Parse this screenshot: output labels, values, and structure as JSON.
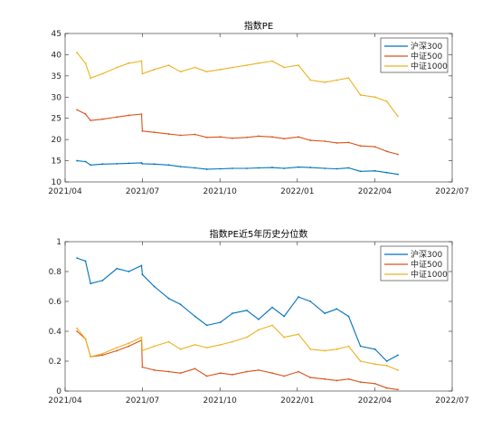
{
  "chart_data": [
    {
      "type": "line",
      "title": "指数PE",
      "xlabel": "",
      "ylabel": "",
      "x_ticks": [
        "2021/04",
        "2021/07",
        "2021/10",
        "2022/01",
        "2022/04",
        "2022/07"
      ],
      "y_ticks": [
        "10",
        "15",
        "20",
        "25",
        "30",
        "35",
        "40",
        "45"
      ],
      "xlim": [
        "2021-04-01",
        "2022-07-01"
      ],
      "ylim": [
        10,
        45
      ],
      "legend_position": "top-right",
      "grid": false,
      "x": [
        "2021-04-15",
        "2021-04-25",
        "2021-05-01",
        "2021-05-15",
        "2021-06-01",
        "2021-06-15",
        "2021-06-30",
        "2021-07-01",
        "2021-07-15",
        "2021-08-01",
        "2021-08-15",
        "2021-09-01",
        "2021-09-15",
        "2021-10-01",
        "2021-10-15",
        "2021-11-01",
        "2021-11-15",
        "2021-12-01",
        "2021-12-15",
        "2022-01-01",
        "2022-01-15",
        "2022-02-01",
        "2022-02-15",
        "2022-03-01",
        "2022-03-15",
        "2022-04-01",
        "2022-04-15",
        "2022-04-28"
      ],
      "series": [
        {
          "name": "沪深300",
          "color": "#0072BD",
          "values": [
            15.0,
            14.8,
            14.0,
            14.2,
            14.3,
            14.4,
            14.5,
            14.3,
            14.2,
            14.0,
            13.6,
            13.3,
            13.0,
            13.1,
            13.2,
            13.2,
            13.3,
            13.4,
            13.2,
            13.5,
            13.4,
            13.2,
            13.1,
            13.3,
            12.5,
            12.6,
            12.2,
            11.8
          ]
        },
        {
          "name": "中证500",
          "color": "#D95319",
          "values": [
            27.0,
            26.0,
            24.5,
            24.8,
            25.3,
            25.7,
            26.0,
            22.0,
            21.7,
            21.3,
            21.0,
            21.2,
            20.5,
            20.6,
            20.3,
            20.5,
            20.8,
            20.6,
            20.2,
            20.6,
            19.8,
            19.6,
            19.2,
            19.3,
            18.5,
            18.3,
            17.2,
            16.5
          ]
        },
        {
          "name": "中证1000",
          "color": "#EDB120",
          "values": [
            40.5,
            38.0,
            34.5,
            35.5,
            37.0,
            38.0,
            38.5,
            35.5,
            36.5,
            37.5,
            36.0,
            37.0,
            36.0,
            36.5,
            37.0,
            37.5,
            38.0,
            38.5,
            37.0,
            37.5,
            34.0,
            33.5,
            34.0,
            34.5,
            30.5,
            30.0,
            29.0,
            25.5
          ]
        }
      ]
    },
    {
      "type": "line",
      "title": "指数PE近5年历史分位数",
      "xlabel": "",
      "ylabel": "",
      "x_ticks": [
        "2021/04",
        "2021/07",
        "2021/10",
        "2022/01",
        "2022/04",
        "2022/07"
      ],
      "y_ticks": [
        "0",
        "0.2",
        "0.4",
        "0.6",
        "0.8",
        "1"
      ],
      "xlim": [
        "2021-04-01",
        "2022-07-01"
      ],
      "ylim": [
        0,
        1
      ],
      "legend_position": "top-right",
      "grid": false,
      "x": [
        "2021-04-15",
        "2021-04-25",
        "2021-05-01",
        "2021-05-15",
        "2021-06-01",
        "2021-06-15",
        "2021-06-30",
        "2021-07-01",
        "2021-07-15",
        "2021-08-01",
        "2021-08-15",
        "2021-09-01",
        "2021-09-15",
        "2021-10-01",
        "2021-10-15",
        "2021-11-01",
        "2021-11-15",
        "2021-12-01",
        "2021-12-15",
        "2022-01-01",
        "2022-01-15",
        "2022-02-01",
        "2022-02-15",
        "2022-03-01",
        "2022-03-15",
        "2022-04-01",
        "2022-04-15",
        "2022-04-28"
      ],
      "series": [
        {
          "name": "沪深300",
          "color": "#0072BD",
          "values": [
            0.89,
            0.87,
            0.72,
            0.74,
            0.82,
            0.8,
            0.84,
            0.78,
            0.7,
            0.62,
            0.58,
            0.5,
            0.44,
            0.46,
            0.52,
            0.54,
            0.48,
            0.56,
            0.5,
            0.63,
            0.6,
            0.52,
            0.55,
            0.5,
            0.3,
            0.28,
            0.2,
            0.24
          ]
        },
        {
          "name": "中证500",
          "color": "#D95319",
          "values": [
            0.4,
            0.35,
            0.23,
            0.24,
            0.27,
            0.3,
            0.34,
            0.16,
            0.14,
            0.13,
            0.12,
            0.15,
            0.1,
            0.12,
            0.11,
            0.13,
            0.14,
            0.12,
            0.1,
            0.13,
            0.09,
            0.08,
            0.07,
            0.08,
            0.06,
            0.05,
            0.02,
            0.01
          ]
        },
        {
          "name": "中证1000",
          "color": "#EDB120",
          "values": [
            0.42,
            0.35,
            0.23,
            0.25,
            0.29,
            0.32,
            0.36,
            0.27,
            0.3,
            0.33,
            0.28,
            0.31,
            0.29,
            0.31,
            0.33,
            0.36,
            0.41,
            0.44,
            0.36,
            0.38,
            0.28,
            0.27,
            0.28,
            0.3,
            0.2,
            0.18,
            0.17,
            0.14
          ]
        }
      ]
    }
  ]
}
